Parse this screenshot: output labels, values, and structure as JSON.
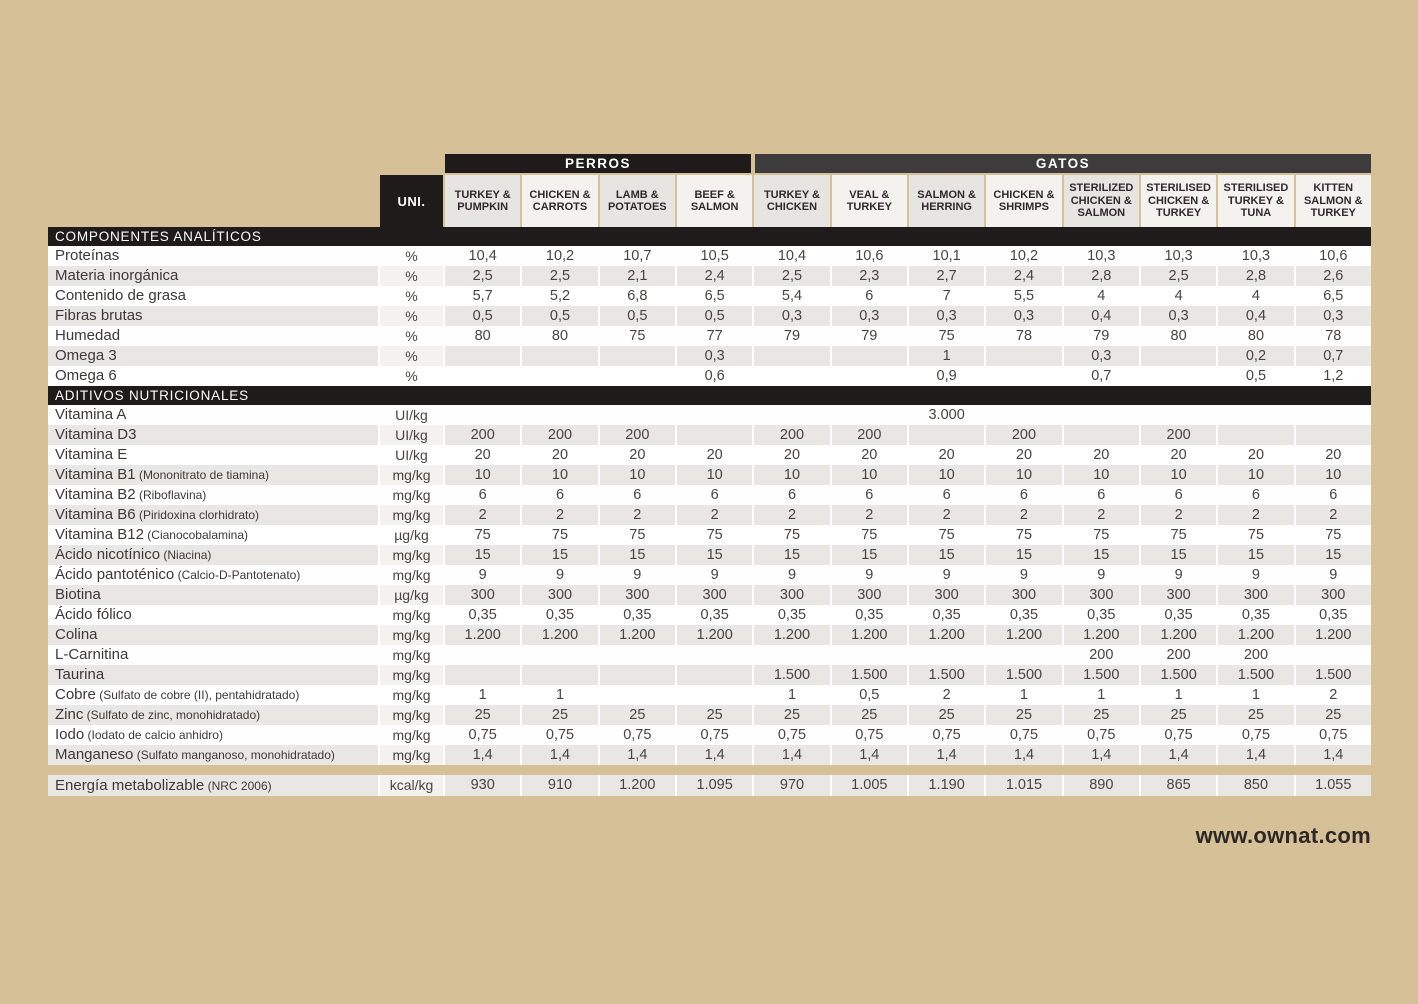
{
  "page": {
    "website": "www.ownat.com",
    "colors": {
      "background": "#d6c098",
      "bar_black": "#1e1b1a",
      "bar_dark_gray": "#3d3b3b",
      "cell_gray": "#e9e7e4",
      "cell_white": "#ffffff"
    }
  },
  "table": {
    "unit_header": "UNI.",
    "groups": [
      {
        "label": "PERROS",
        "col_span": 4
      },
      {
        "label": "GATOS",
        "col_span": 8
      }
    ],
    "columns": [
      {
        "label": "TURKEY & PUMPKIN",
        "shaded": true
      },
      {
        "label": "CHICKEN & CARROTS",
        "shaded": false
      },
      {
        "label": "LAMB & POTATOES",
        "shaded": true
      },
      {
        "label": "BEEF & SALMON",
        "shaded": false
      },
      {
        "label": "TURKEY & CHICKEN",
        "shaded": true
      },
      {
        "label": "VEAL & TURKEY",
        "shaded": false
      },
      {
        "label": "SALMON & HERRING",
        "shaded": true
      },
      {
        "label": "CHICKEN & SHRIMPS",
        "shaded": false
      },
      {
        "label": "STERILIZED CHICKEN & SALMON",
        "shaded": true
      },
      {
        "label": "STERILISED CHICKEN & TURKEY",
        "shaded": false
      },
      {
        "label": "STERILISED TURKEY & TUNA",
        "shaded": false
      },
      {
        "label": "KITTEN SALMON & TURKEY",
        "shaded": false
      }
    ],
    "sections": [
      {
        "title": "COMPONENTES ANALÍTICOS",
        "rows": [
          {
            "label": "Proteínas",
            "note": "",
            "unit": "%",
            "values": [
              "10,4",
              "10,2",
              "10,7",
              "10,5",
              "10,4",
              "10,6",
              "10,1",
              "10,2",
              "10,3",
              "10,3",
              "10,3",
              "10,6"
            ]
          },
          {
            "label": "Materia inorgánica",
            "note": "",
            "unit": "%",
            "values": [
              "2,5",
              "2,5",
              "2,1",
              "2,4",
              "2,5",
              "2,3",
              "2,7",
              "2,4",
              "2,8",
              "2,5",
              "2,8",
              "2,6"
            ]
          },
          {
            "label": "Contenido de grasa",
            "note": "",
            "unit": "%",
            "values": [
              "5,7",
              "5,2",
              "6,8",
              "6,5",
              "5,4",
              "6",
              "7",
              "5,5",
              "4",
              "4",
              "4",
              "6,5"
            ]
          },
          {
            "label": "Fibras brutas",
            "note": "",
            "unit": "%",
            "values": [
              "0,5",
              "0,5",
              "0,5",
              "0,5",
              "0,3",
              "0,3",
              "0,3",
              "0,3",
              "0,4",
              "0,3",
              "0,4",
              "0,3"
            ]
          },
          {
            "label": "Humedad",
            "note": "",
            "unit": "%",
            "values": [
              "80",
              "80",
              "75",
              "77",
              "79",
              "79",
              "75",
              "78",
              "79",
              "80",
              "80",
              "78"
            ]
          },
          {
            "label": "Omega 3",
            "note": "",
            "unit": "%",
            "values": [
              "",
              "",
              "",
              "0,3",
              "",
              "",
              "1",
              "",
              "0,3",
              "",
              "0,2",
              "0,7"
            ]
          },
          {
            "label": "Omega 6",
            "note": "",
            "unit": "%",
            "values": [
              "",
              "",
              "",
              "0,6",
              "",
              "",
              "0,9",
              "",
              "0,7",
              "",
              "0,5",
              "1,2"
            ]
          }
        ]
      },
      {
        "title": "ADITIVOS NUTRICIONALES",
        "rows": [
          {
            "label": "Vitamina A",
            "note": "",
            "unit": "UI/kg",
            "values": [
              "",
              "",
              "",
              "",
              "",
              "",
              "3.000",
              "",
              "",
              "",
              "",
              ""
            ]
          },
          {
            "label": "Vitamina D3",
            "note": "",
            "unit": "UI/kg",
            "values": [
              "200",
              "200",
              "200",
              "",
              "200",
              "200",
              "",
              "200",
              "",
              "200",
              "",
              ""
            ]
          },
          {
            "label": "Vitamina E",
            "note": "",
            "unit": "UI/kg",
            "values": [
              "20",
              "20",
              "20",
              "20",
              "20",
              "20",
              "20",
              "20",
              "20",
              "20",
              "20",
              "20"
            ]
          },
          {
            "label": "Vitamina B1",
            "note": "(Mononitrato de tiamina)",
            "unit": "mg/kg",
            "values": [
              "10",
              "10",
              "10",
              "10",
              "10",
              "10",
              "10",
              "10",
              "10",
              "10",
              "10",
              "10"
            ]
          },
          {
            "label": "Vitamina B2",
            "note": "(Riboflavina)",
            "unit": "mg/kg",
            "values": [
              "6",
              "6",
              "6",
              "6",
              "6",
              "6",
              "6",
              "6",
              "6",
              "6",
              "6",
              "6"
            ]
          },
          {
            "label": "Vitamina B6",
            "note": "(Piridoxina clorhidrato)",
            "unit": "mg/kg",
            "values": [
              "2",
              "2",
              "2",
              "2",
              "2",
              "2",
              "2",
              "2",
              "2",
              "2",
              "2",
              "2"
            ]
          },
          {
            "label": "Vitamina B12",
            "note": "(Cianocobalamina)",
            "unit": "µg/kg",
            "values": [
              "75",
              "75",
              "75",
              "75",
              "75",
              "75",
              "75",
              "75",
              "75",
              "75",
              "75",
              "75"
            ]
          },
          {
            "label": "Ácido nicotínico",
            "note": "(Niacina)",
            "unit": "mg/kg",
            "values": [
              "15",
              "15",
              "15",
              "15",
              "15",
              "15",
              "15",
              "15",
              "15",
              "15",
              "15",
              "15"
            ]
          },
          {
            "label": "Ácido pantoténico",
            "note": "(Calcio-D-Pantotenato)",
            "unit": "mg/kg",
            "values": [
              "9",
              "9",
              "9",
              "9",
              "9",
              "9",
              "9",
              "9",
              "9",
              "9",
              "9",
              "9"
            ]
          },
          {
            "label": "Biotina",
            "note": "",
            "unit": "µg/kg",
            "values": [
              "300",
              "300",
              "300",
              "300",
              "300",
              "300",
              "300",
              "300",
              "300",
              "300",
              "300",
              "300"
            ]
          },
          {
            "label": "Ácido fólico",
            "note": "",
            "unit": "mg/kg",
            "values": [
              "0,35",
              "0,35",
              "0,35",
              "0,35",
              "0,35",
              "0,35",
              "0,35",
              "0,35",
              "0,35",
              "0,35",
              "0,35",
              "0,35"
            ]
          },
          {
            "label": "Colina",
            "note": "",
            "unit": "mg/kg",
            "values": [
              "1.200",
              "1.200",
              "1.200",
              "1.200",
              "1.200",
              "1.200",
              "1.200",
              "1.200",
              "1.200",
              "1.200",
              "1.200",
              "1.200"
            ]
          },
          {
            "label": "L-Carnitina",
            "note": "",
            "unit": "mg/kg",
            "values": [
              "",
              "",
              "",
              "",
              "",
              "",
              "",
              "",
              "200",
              "200",
              "200",
              ""
            ]
          },
          {
            "label": "Taurina",
            "note": "",
            "unit": "mg/kg",
            "values": [
              "",
              "",
              "",
              "",
              "1.500",
              "1.500",
              "1.500",
              "1.500",
              "1.500",
              "1.500",
              "1.500",
              "1.500"
            ]
          },
          {
            "label": "Cobre",
            "note": "(Sulfato de cobre (II), pentahidratado)",
            "unit": "mg/kg",
            "values": [
              "1",
              "1",
              "",
              "",
              "1",
              "0,5",
              "2",
              "1",
              "1",
              "1",
              "1",
              "2"
            ]
          },
          {
            "label": "Zinc",
            "note": "(Sulfato de zinc, monohidratado)",
            "unit": "mg/kg",
            "values": [
              "25",
              "25",
              "25",
              "25",
              "25",
              "25",
              "25",
              "25",
              "25",
              "25",
              "25",
              "25"
            ]
          },
          {
            "label": "Iodo",
            "note": "(Iodato de calcio anhidro)",
            "unit": "mg/kg",
            "values": [
              "0,75",
              "0,75",
              "0,75",
              "0,75",
              "0,75",
              "0,75",
              "0,75",
              "0,75",
              "0,75",
              "0,75",
              "0,75",
              "0,75"
            ]
          },
          {
            "label": "Manganeso",
            "note": "(Sulfato manganoso, monohidratado)",
            "unit": "mg/kg",
            "values": [
              "1,4",
              "1,4",
              "1,4",
              "1,4",
              "1,4",
              "1,4",
              "1,4",
              "1,4",
              "1,4",
              "1,4",
              "1,4",
              "1,4"
            ]
          }
        ]
      }
    ],
    "footer_row": {
      "label": "Energía metabolizable",
      "note": "(NRC 2006)",
      "unit": "kcal/kg",
      "values": [
        "930",
        "910",
        "1.200",
        "1.095",
        "970",
        "1.005",
        "1.190",
        "1.015",
        "890",
        "865",
        "850",
        "1.055"
      ]
    }
  }
}
